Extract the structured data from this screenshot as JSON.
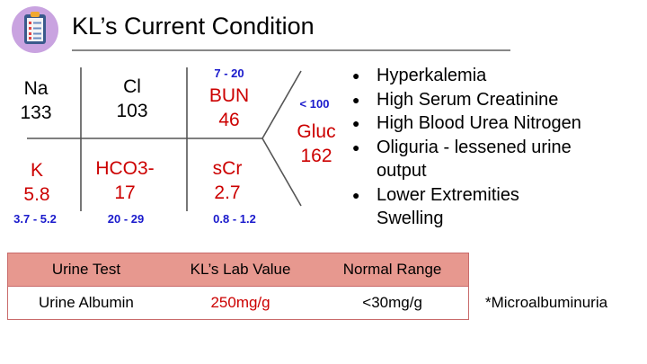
{
  "header": {
    "title": "KL’s Current Condition"
  },
  "logo": {
    "icon": "clipboard-checklist-icon"
  },
  "colors": {
    "abnormal": "#cc0000",
    "range": "#1a1acc",
    "table_header": "#e7988f",
    "table_border": "#c96b6b"
  },
  "lab_diagram": {
    "na": {
      "label": "Na",
      "value": "133"
    },
    "cl": {
      "label": "Cl",
      "value": "103"
    },
    "bun": {
      "label": "BUN",
      "value": "46",
      "range": "7 - 20"
    },
    "k": {
      "label": "K",
      "value": "5.8",
      "range": "3.7 - 5.2"
    },
    "hco3": {
      "label": "HCO3-",
      "value": "17",
      "range": "20 - 29"
    },
    "scr": {
      "label": "sCr",
      "value": "2.7",
      "range": "0.8 - 1.2"
    },
    "gluc": {
      "label": "Gluc",
      "value": "162",
      "range": "< 100"
    }
  },
  "findings": [
    "Hyperkalemia",
    "High Serum Creatinine",
    "High Blood Urea Nitrogen",
    "Oliguria - lessened urine output",
    "Lower Extremities Swelling"
  ],
  "urine_table": {
    "headers": [
      "Urine Test",
      "KL’s Lab Value",
      "Normal Range"
    ],
    "rows": [
      {
        "test": "Urine Albumin",
        "value": "250mg/g",
        "normal": "<30mg/g"
      }
    ]
  },
  "note": "*Microalbuminuria"
}
